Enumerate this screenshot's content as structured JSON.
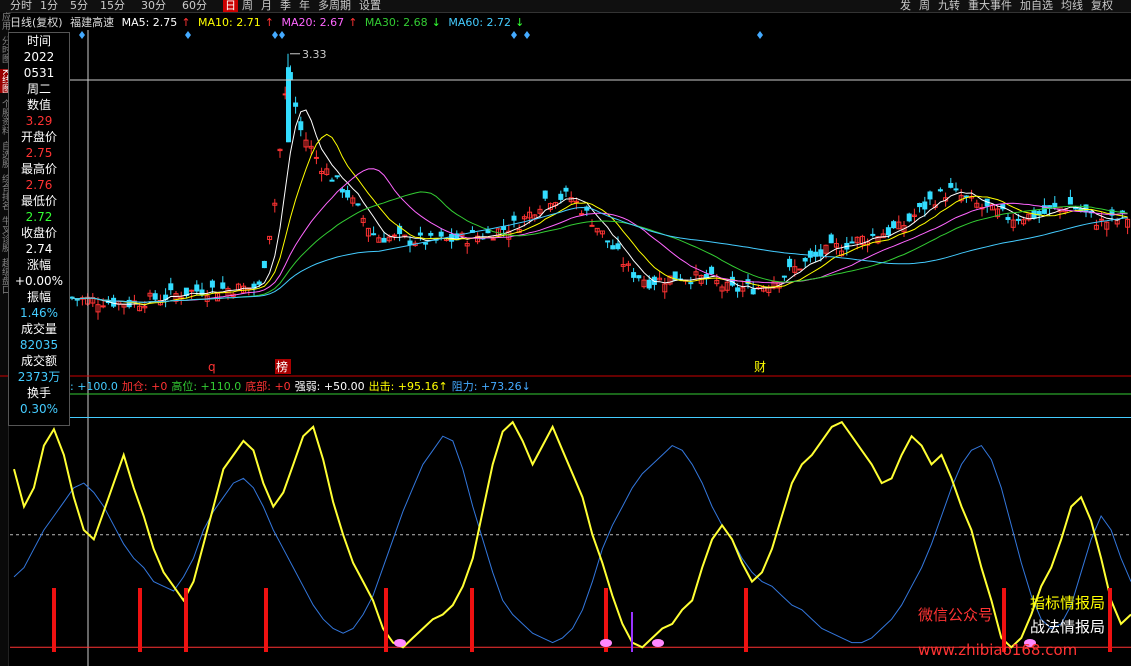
{
  "toolbar": {
    "periods": [
      "分时",
      "1分",
      "5分",
      "15分",
      "30分",
      "60分",
      "日",
      "周",
      "月",
      "季",
      "年",
      "多周期",
      "设置"
    ],
    "selected": "日",
    "right_items": [
      "发",
      "周",
      "九转",
      "重大事件",
      "加自选",
      "均线",
      "复权"
    ]
  },
  "sidebar_tabs": [
    "应用",
    "分时图",
    "K线图",
    "个股资料",
    "自选股",
    "综合排名",
    "牛叉诊股",
    "超级盘口"
  ],
  "main_legend": {
    "mode": "日线(复权)",
    "stock": "福建高速",
    "ma5": {
      "label": "MA5: 2.75",
      "arrow": "↑",
      "color": "#ffffff"
    },
    "ma10": {
      "label": "MA10: 2.71",
      "arrow": "↑",
      "color": "#ffff00"
    },
    "ma20": {
      "label": "MA20: 2.67",
      "arrow": "↑",
      "color": "#ff66ff"
    },
    "ma30": {
      "label": "MA30: 2.68",
      "arrow": "↓",
      "color": "#33cc33"
    },
    "ma60": {
      "label": "MA60: 2.72",
      "arrow": "↓",
      "color": "#44ccff"
    }
  },
  "info_panel": {
    "rows": [
      {
        "t": "时间",
        "c": "#ffffff"
      },
      {
        "t": "2022",
        "c": "#ffffff"
      },
      {
        "t": "0531",
        "c": "#ffffff"
      },
      {
        "t": "周二",
        "c": "#ffffff"
      },
      {
        "t": "数值",
        "c": "#ffffff"
      },
      {
        "t": "3.29",
        "c": "#ff3333"
      },
      {
        "t": "开盘价",
        "c": "#ffffff"
      },
      {
        "t": "2.75",
        "c": "#ff3333"
      },
      {
        "t": "最高价",
        "c": "#ffffff"
      },
      {
        "t": "2.76",
        "c": "#ff3333"
      },
      {
        "t": "最低价",
        "c": "#ffffff"
      },
      {
        "t": "2.72",
        "c": "#33ff33"
      },
      {
        "t": "收盘价",
        "c": "#ffffff"
      },
      {
        "t": "2.74",
        "c": "#ffffff"
      },
      {
        "t": "涨幅",
        "c": "#ffffff"
      },
      {
        "t": "+0.00%",
        "c": "#ffffff"
      },
      {
        "t": "振幅",
        "c": "#ffffff"
      },
      {
        "t": "1.46%",
        "c": "#44ccff"
      },
      {
        "t": "成交量",
        "c": "#ffffff"
      },
      {
        "t": "82035",
        "c": "#44ccff"
      },
      {
        "t": "成交额",
        "c": "#ffffff"
      },
      {
        "t": "2373万",
        "c": "#44ccff"
      },
      {
        "t": "换手",
        "c": "#ffffff"
      },
      {
        "t": "0.30%",
        "c": "#44ccff"
      }
    ]
  },
  "price_annotation": "3.33",
  "event_markers": {
    "q": "q",
    "bang": "榜",
    "cai": "财"
  },
  "indicator_legend": [
    {
      "t": ": +100.0",
      "c": "#44ccff"
    },
    {
      "t": "加仓: +0",
      "c": "#ff3333"
    },
    {
      "t": "高位: +110.0",
      "c": "#33cc33"
    },
    {
      "t": "底部: +0",
      "c": "#ff3333"
    },
    {
      "t": "强弱: +50.00",
      "c": "#ffffff"
    },
    {
      "t": "出击: +95.16↑",
      "c": "#ffff00"
    },
    {
      "t": "阻力: +73.26↓",
      "c": "#44aaff"
    }
  ],
  "watermark": {
    "wechat": "微信公众号",
    "line1": "指标情报局",
    "line2": "战法情报局",
    "url": "www.zhibiao168.com"
  },
  "chart_data": {
    "type": "candlestick",
    "price_range": [
      2.3,
      3.4
    ],
    "strength_series": [
      78,
      62,
      70,
      88,
      95,
      84,
      66,
      52,
      48,
      60,
      72,
      84,
      70,
      58,
      44,
      34,
      28,
      22,
      30,
      46,
      62,
      78,
      84,
      90,
      86,
      72,
      62,
      68,
      80,
      92,
      96,
      82,
      64,
      50,
      38,
      30,
      22,
      10,
      4,
      2,
      6,
      10,
      14,
      16,
      20,
      28,
      40,
      60,
      80,
      94,
      98,
      90,
      80,
      88,
      96,
      86,
      76,
      66,
      50,
      38,
      24,
      12,
      4,
      2,
      6,
      10,
      12,
      18,
      22,
      36,
      48,
      54,
      48,
      38,
      30,
      34,
      44,
      58,
      72,
      80,
      84,
      90,
      96,
      98,
      92,
      86,
      80,
      72,
      74,
      84,
      92,
      88,
      80,
      84,
      74,
      62,
      52,
      36,
      22,
      6,
      2,
      6,
      16,
      28,
      36,
      48,
      62,
      66,
      56,
      40,
      22,
      12,
      16
    ],
    "volatility_series": [
      32,
      36,
      44,
      52,
      58,
      64,
      70,
      72,
      68,
      62,
      54,
      46,
      40,
      36,
      30,
      28,
      26,
      32,
      40,
      52,
      60,
      66,
      72,
      74,
      70,
      62,
      52,
      44,
      36,
      28,
      20,
      14,
      10,
      8,
      10,
      16,
      24,
      36,
      48,
      60,
      70,
      80,
      86,
      92,
      90,
      78,
      62,
      48,
      34,
      22,
      16,
      12,
      8,
      6,
      4,
      6,
      10,
      18,
      30,
      44,
      54,
      62,
      70,
      76,
      80,
      84,
      88,
      86,
      80,
      72,
      62,
      54,
      48,
      40,
      34,
      30,
      28,
      24,
      20,
      18,
      14,
      10,
      8,
      6,
      4,
      4,
      6,
      10,
      14,
      20,
      28,
      36,
      46,
      58,
      70,
      80,
      86,
      88,
      82,
      70,
      54,
      38,
      24,
      14,
      10,
      12,
      20,
      34,
      48,
      58,
      52,
      40,
      30
    ],
    "buy_signal_count": 10,
    "reference_lines": {
      "high": 110,
      "resist": 100,
      "mid": 50,
      "low": 0
    }
  }
}
